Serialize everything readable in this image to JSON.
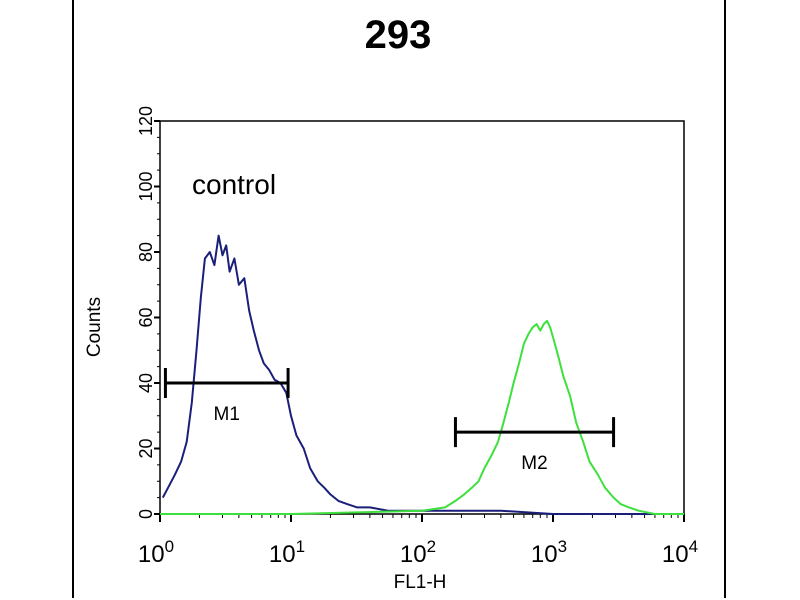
{
  "chart_data": {
    "type": "line",
    "title": "293",
    "xlabel": "FL1-H",
    "ylabel": "Counts",
    "x_scale": "log",
    "xlim": [
      1,
      10000
    ],
    "ylim": [
      0,
      120
    ],
    "x_ticks": [
      {
        "value": 1,
        "base": "10",
        "exp": "0"
      },
      {
        "value": 10,
        "base": "10",
        "exp": "1"
      },
      {
        "value": 100,
        "base": "10",
        "exp": "2"
      },
      {
        "value": 1000,
        "base": "10",
        "exp": "3"
      },
      {
        "value": 10000,
        "base": "10",
        "exp": "4"
      }
    ],
    "y_ticks": [
      0,
      20,
      40,
      60,
      80,
      100,
      120
    ],
    "annotation": "control",
    "colors": {
      "control": "#1a1f7a",
      "sample": "#3ee03e"
    },
    "series": [
      {
        "color_key": "control",
        "x": [
          1.05,
          1.15,
          1.3,
          1.45,
          1.6,
          1.75,
          1.9,
          2.05,
          2.2,
          2.4,
          2.6,
          2.8,
          3.0,
          3.2,
          3.4,
          3.7,
          4.0,
          4.4,
          4.8,
          5.2,
          5.7,
          6.2,
          6.8,
          7.5,
          8.3,
          9.2,
          10,
          11,
          12.5,
          14,
          16,
          18,
          20,
          23,
          27,
          32,
          40,
          55,
          80,
          120,
          200,
          400,
          1000,
          3000,
          10000
        ],
        "y": [
          5,
          8,
          12,
          16,
          22,
          34,
          50,
          66,
          78,
          80,
          76,
          85,
          79,
          82,
          74,
          78,
          70,
          72,
          62,
          56,
          50,
          46,
          44,
          41,
          40,
          37,
          30,
          24,
          20,
          14,
          10,
          8,
          6,
          4,
          3,
          2,
          2,
          1,
          1,
          1,
          1,
          1,
          0,
          0,
          0
        ]
      },
      {
        "color_key": "sample",
        "x": [
          1,
          10,
          100,
          150,
          180,
          210,
          240,
          270,
          300,
          340,
          380,
          420,
          460,
          500,
          550,
          600,
          650,
          700,
          750,
          800,
          850,
          900,
          950,
          1000,
          1100,
          1200,
          1350,
          1500,
          1700,
          1900,
          2200,
          2500,
          2900,
          3300,
          3800,
          4500,
          6000,
          10000
        ],
        "y": [
          0,
          0,
          1,
          2,
          4,
          6,
          8,
          10,
          14,
          18,
          22,
          28,
          34,
          40,
          46,
          52,
          55,
          57,
          58,
          56,
          58,
          59,
          57,
          54,
          48,
          42,
          36,
          28,
          22,
          16,
          12,
          8,
          5,
          3,
          2,
          1,
          0,
          0
        ]
      }
    ],
    "markers": [
      {
        "label": "M1",
        "x_start": 1.1,
        "x_end": 9.5,
        "y": 40
      },
      {
        "label": "M2",
        "x_start": 180,
        "x_end": 2900,
        "y": 25
      }
    ]
  }
}
